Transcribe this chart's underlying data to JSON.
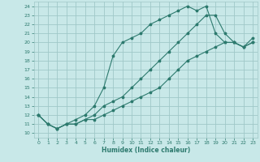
{
  "xlabel": "Humidex (Indice chaleur)",
  "ylabel": "",
  "xlim": [
    -0.5,
    23.5
  ],
  "ylim": [
    9.5,
    24.5
  ],
  "xticks": [
    0,
    1,
    2,
    3,
    4,
    5,
    6,
    7,
    8,
    9,
    10,
    11,
    12,
    13,
    14,
    15,
    16,
    17,
    18,
    19,
    20,
    21,
    22,
    23
  ],
  "yticks": [
    10,
    11,
    12,
    13,
    14,
    15,
    16,
    17,
    18,
    19,
    20,
    21,
    22,
    23,
    24
  ],
  "bg_color": "#c8e8e8",
  "grid_color": "#a0c8c8",
  "line_color": "#2d7a6e",
  "line1_x": [
    0,
    1,
    2,
    3,
    4,
    5,
    6,
    7,
    8,
    9,
    10,
    11,
    12,
    13,
    14,
    15,
    16,
    17,
    18,
    19,
    20,
    21,
    22,
    23
  ],
  "line1_y": [
    12,
    11,
    10.5,
    11,
    11.5,
    12,
    13,
    15,
    18.5,
    20,
    20.5,
    21,
    22,
    22.5,
    23,
    23.5,
    24,
    23.5,
    24,
    21,
    20,
    20,
    19.5,
    20
  ],
  "line2_x": [
    0,
    1,
    2,
    3,
    4,
    5,
    6,
    7,
    8,
    9,
    10,
    11,
    12,
    13,
    14,
    15,
    16,
    17,
    18,
    19,
    20,
    21,
    22,
    23
  ],
  "line2_y": [
    12,
    11,
    10.5,
    11,
    11,
    11.5,
    12,
    13,
    13.5,
    14,
    15,
    16,
    17,
    18,
    19,
    20,
    21,
    22,
    23,
    23,
    21,
    20,
    19.5,
    20
  ],
  "line3_x": [
    0,
    1,
    2,
    3,
    4,
    5,
    6,
    7,
    8,
    9,
    10,
    11,
    12,
    13,
    14,
    15,
    16,
    17,
    18,
    19,
    20,
    21,
    22,
    23
  ],
  "line3_y": [
    12,
    11,
    10.5,
    11,
    11,
    11.5,
    11.5,
    12,
    12.5,
    13,
    13.5,
    14,
    14.5,
    15,
    16,
    17,
    18,
    18.5,
    19,
    19.5,
    20,
    20,
    19.5,
    20.5
  ],
  "tick_fontsize": 4.5,
  "xlabel_fontsize": 5.5,
  "marker_size": 2.5,
  "line_width": 0.8
}
